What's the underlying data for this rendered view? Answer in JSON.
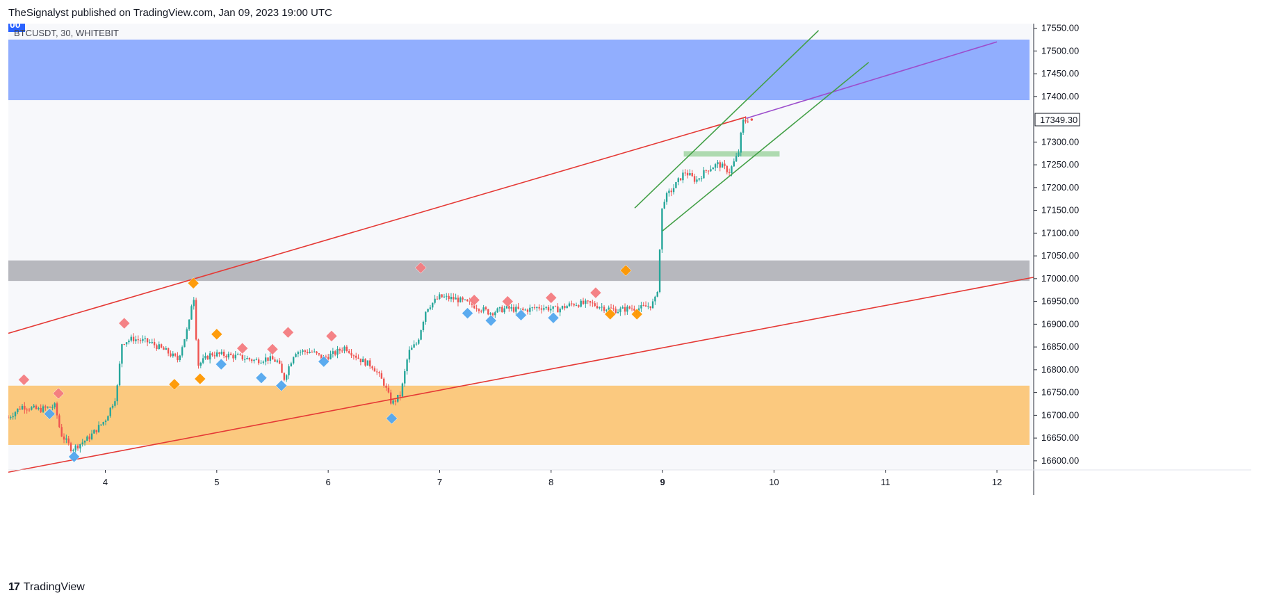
{
  "header": {
    "publisher_line": "TheSignalyst published on TradingView.com, Jan 09, 2023 19:00 UTC"
  },
  "symbol_badge": "00",
  "symbol_info": "BTCUSDT, 30, WHITEBIT",
  "footer": {
    "logo_glyph": "17",
    "brand": "TradingView"
  },
  "colors": {
    "candle_up": "#26a69a",
    "candle_down": "#ef5350",
    "supply_zone": "#91aefe",
    "demand_zone": "#fbc97f",
    "gray_zone": "#b7b8be",
    "green_zone": "#a5d6a7",
    "red_trendline": "#e53935",
    "purple_line": "#9c4dcc",
    "green_line": "#43a047",
    "marker_red": "#f47c80",
    "marker_blue": "#53a7ef",
    "marker_orange": "#ff9800",
    "plot_bg": "#f7f8fb"
  },
  "chart_data": {
    "type": "candlestick",
    "symbol": "BTCUSDT",
    "interval": "30",
    "exchange": "WHITEBIT",
    "last_price": "17349.30",
    "ylim": [
      16580,
      17560
    ],
    "xlim": [
      3.13,
      12.33
    ],
    "y_ticks": [
      "17550.00",
      "17500.00",
      "17450.00",
      "17400.00",
      "17300.00",
      "17250.00",
      "17200.00",
      "17150.00",
      "17100.00",
      "17050.00",
      "17000.00",
      "16950.00",
      "16900.00",
      "16850.00",
      "16800.00",
      "16750.00",
      "16700.00",
      "16650.00",
      "16600.00"
    ],
    "x_ticks": [
      "4",
      "5",
      "6",
      "7",
      "8",
      "9",
      "10",
      "11",
      "12"
    ],
    "zones": [
      {
        "name": "supply",
        "from": 17392,
        "to": 17525
      },
      {
        "name": "resistance",
        "from": 16995,
        "to": 17040
      },
      {
        "name": "demand",
        "from": 16635,
        "to": 16765
      },
      {
        "name": "flip",
        "x0": 9.19,
        "x1": 10.05,
        "from": 17268,
        "to": 17280
      }
    ],
    "trendlines": [
      {
        "name": "upper-channel",
        "x0": 3.13,
        "y0": 16880,
        "x1": 9.75,
        "y1": 17355,
        "color": "red"
      },
      {
        "name": "lower-channel",
        "x0": 3.13,
        "y0": 16575,
        "x1": 12.33,
        "y1": 17003,
        "color": "red"
      },
      {
        "name": "purple",
        "x0": 9.75,
        "y0": 17352,
        "x1": 12.0,
        "y1": 17520,
        "color": "purple"
      },
      {
        "name": "rising-channel-top",
        "x0": 8.75,
        "y0": 17155,
        "x1": 10.4,
        "y1": 17545,
        "color": "green"
      },
      {
        "name": "rising-channel-bottom",
        "x0": 9.0,
        "y0": 17105,
        "x1": 10.85,
        "y1": 17475,
        "color": "green"
      }
    ],
    "path": [
      [
        3.13,
        16695
      ],
      [
        3.25,
        16720
      ],
      [
        3.4,
        16712
      ],
      [
        3.55,
        16720
      ],
      [
        3.6,
        16660
      ],
      [
        3.7,
        16625
      ],
      [
        3.85,
        16650
      ],
      [
        4.0,
        16690
      ],
      [
        4.1,
        16745
      ],
      [
        4.15,
        16860
      ],
      [
        4.25,
        16868
      ],
      [
        4.4,
        16860
      ],
      [
        4.55,
        16840
      ],
      [
        4.65,
        16822
      ],
      [
        4.75,
        16900
      ],
      [
        4.79,
        16975
      ],
      [
        4.83,
        16810
      ],
      [
        4.95,
        16835
      ],
      [
        5.1,
        16832
      ],
      [
        5.2,
        16828
      ],
      [
        5.35,
        16820
      ],
      [
        5.45,
        16825
      ],
      [
        5.55,
        16818
      ],
      [
        5.6,
        16778
      ],
      [
        5.7,
        16840
      ],
      [
        5.85,
        16840
      ],
      [
        5.95,
        16825
      ],
      [
        6.05,
        16835
      ],
      [
        6.15,
        16850
      ],
      [
        6.3,
        16820
      ],
      [
        6.4,
        16808
      ],
      [
        6.5,
        16770
      ],
      [
        6.57,
        16725
      ],
      [
        6.65,
        16745
      ],
      [
        6.72,
        16838
      ],
      [
        6.8,
        16860
      ],
      [
        6.88,
        16935
      ],
      [
        7.0,
        16960
      ],
      [
        7.15,
        16955
      ],
      [
        7.3,
        16942
      ],
      [
        7.45,
        16925
      ],
      [
        7.6,
        16935
      ],
      [
        7.75,
        16930
      ],
      [
        7.9,
        16938
      ],
      [
        8.05,
        16932
      ],
      [
        8.2,
        16945
      ],
      [
        8.35,
        16945
      ],
      [
        8.5,
        16935
      ],
      [
        8.6,
        16930
      ],
      [
        8.7,
        16935
      ],
      [
        8.8,
        16935
      ],
      [
        8.9,
        16942
      ],
      [
        8.95,
        16960
      ],
      [
        9.0,
        17170
      ],
      [
        9.1,
        17200
      ],
      [
        9.2,
        17235
      ],
      [
        9.3,
        17215
      ],
      [
        9.4,
        17240
      ],
      [
        9.5,
        17252
      ],
      [
        9.6,
        17235
      ],
      [
        9.68,
        17275
      ],
      [
        9.72,
        17345
      ],
      [
        9.78,
        17350
      ]
    ],
    "markers": [
      {
        "type": "red",
        "x": 3.27,
        "y": 16778
      },
      {
        "type": "red",
        "x": 3.58,
        "y": 16748
      },
      {
        "type": "blue",
        "x": 3.5,
        "y": 16703
      },
      {
        "type": "blue",
        "x": 3.72,
        "y": 16609
      },
      {
        "type": "red",
        "x": 4.17,
        "y": 16902
      },
      {
        "type": "orange",
        "x": 4.62,
        "y": 16768
      },
      {
        "type": "orange",
        "x": 4.79,
        "y": 16990
      },
      {
        "type": "orange",
        "x": 4.85,
        "y": 16780
      },
      {
        "type": "orange",
        "x": 5.0,
        "y": 16878
      },
      {
        "type": "blue",
        "x": 5.04,
        "y": 16812
      },
      {
        "type": "red",
        "x": 5.23,
        "y": 16847
      },
      {
        "type": "blue",
        "x": 5.4,
        "y": 16782
      },
      {
        "type": "red",
        "x": 5.5,
        "y": 16845
      },
      {
        "type": "blue",
        "x": 5.58,
        "y": 16765
      },
      {
        "type": "red",
        "x": 5.64,
        "y": 16882
      },
      {
        "type": "blue",
        "x": 5.96,
        "y": 16818
      },
      {
        "type": "red",
        "x": 6.03,
        "y": 16874
      },
      {
        "type": "blue",
        "x": 6.57,
        "y": 16693
      },
      {
        "type": "red",
        "x": 6.83,
        "y": 17024
      },
      {
        "type": "red",
        "x": 7.31,
        "y": 16953
      },
      {
        "type": "blue",
        "x": 7.25,
        "y": 16924
      },
      {
        "type": "blue",
        "x": 7.46,
        "y": 16908
      },
      {
        "type": "red",
        "x": 7.61,
        "y": 16950
      },
      {
        "type": "blue",
        "x": 7.73,
        "y": 16920
      },
      {
        "type": "red",
        "x": 8.0,
        "y": 16958
      },
      {
        "type": "blue",
        "x": 8.02,
        "y": 16914
      },
      {
        "type": "red",
        "x": 8.4,
        "y": 16969
      },
      {
        "type": "orange",
        "x": 8.53,
        "y": 16922
      },
      {
        "type": "orange",
        "x": 8.67,
        "y": 17018
      },
      {
        "type": "orange",
        "x": 8.77,
        "y": 16922
      }
    ]
  }
}
